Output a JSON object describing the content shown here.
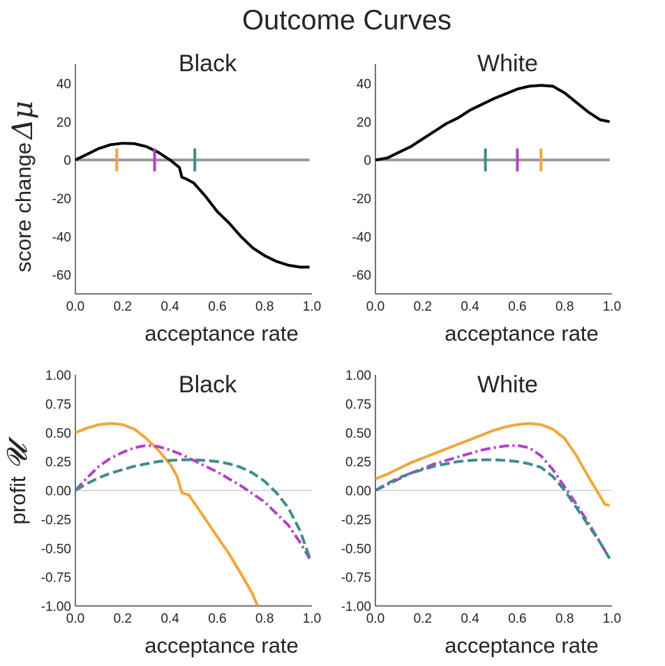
{
  "figure": {
    "title": "Outcome Curves",
    "top_ylabel": "score change",
    "top_ysymbol": "Δμ",
    "bottom_ylabel": "profit",
    "bottom_ysymbol": "𝓤",
    "colors": {
      "outcome": "#000000",
      "baseline": "#999999",
      "zero_line": "#c8c8c8",
      "orange": "#f1a73a",
      "purple": "#b541c8",
      "teal": "#3d8e8a",
      "axis": "#262626"
    }
  },
  "chart_data": [
    {
      "id": "black-score",
      "type": "line",
      "title": "Black",
      "xlabel": "acceptance rate",
      "ylabel": "score change Δμ",
      "xlim": [
        0,
        1
      ],
      "ylim": [
        -70,
        50
      ],
      "xticks": [
        0.0,
        0.2,
        0.4,
        0.6,
        0.8,
        1.0
      ],
      "xtick_labels": [
        "0.0",
        "0.2",
        "0.4",
        "0.6",
        "0.8",
        "1.0"
      ],
      "yticks": [
        40,
        20,
        0,
        -20,
        -40,
        -60
      ],
      "ytick_labels": [
        "40",
        "20",
        "0",
        "-20",
        "-40",
        "-60"
      ],
      "baseline": {
        "x": [
          0,
          0.99
        ],
        "y": [
          0,
          0
        ]
      },
      "series": [
        {
          "name": "score change",
          "color": "#000000",
          "style": "solid",
          "x": [
            0,
            0.05,
            0.1,
            0.15,
            0.2,
            0.25,
            0.3,
            0.35,
            0.4,
            0.44,
            0.45,
            0.47,
            0.5,
            0.55,
            0.6,
            0.65,
            0.7,
            0.75,
            0.8,
            0.85,
            0.9,
            0.95,
            0.99
          ],
          "y": [
            0,
            3,
            6,
            8,
            8.7,
            8.5,
            7,
            4,
            0,
            -4,
            -9,
            -10,
            -12,
            -19,
            -27,
            -33,
            -40,
            -46,
            -50,
            -53,
            -55,
            -56,
            -56
          ]
        }
      ],
      "markers": [
        {
          "name": "orange",
          "x": 0.175,
          "color": "#f1a73a"
        },
        {
          "name": "purple",
          "x": 0.335,
          "color": "#b541c8"
        },
        {
          "name": "teal",
          "x": 0.505,
          "color": "#3d8e8a"
        }
      ]
    },
    {
      "id": "white-score",
      "type": "line",
      "title": "White",
      "xlabel": "acceptance rate",
      "ylabel": "",
      "xlim": [
        0,
        1
      ],
      "ylim": [
        -70,
        50
      ],
      "xticks": [
        0.0,
        0.2,
        0.4,
        0.6,
        0.8,
        1.0
      ],
      "xtick_labels": [
        "0.0",
        "0.2",
        "0.4",
        "0.6",
        "0.8",
        "1.0"
      ],
      "yticks": [
        40,
        20,
        0,
        -20,
        -40,
        -60
      ],
      "ytick_labels": [
        "40",
        "20",
        "0",
        "-20",
        "-40",
        "-60"
      ],
      "baseline": {
        "x": [
          0,
          0.99
        ],
        "y": [
          0,
          0
        ]
      },
      "series": [
        {
          "name": "score change",
          "color": "#000000",
          "style": "solid",
          "x": [
            0,
            0.05,
            0.1,
            0.15,
            0.2,
            0.25,
            0.3,
            0.35,
            0.4,
            0.45,
            0.5,
            0.55,
            0.6,
            0.65,
            0.7,
            0.75,
            0.8,
            0.85,
            0.9,
            0.95,
            0.99
          ],
          "y": [
            0,
            1,
            4,
            7,
            11,
            15,
            19,
            22,
            26,
            29,
            32,
            34.5,
            37,
            38.5,
            39,
            38.5,
            35,
            30,
            25,
            21,
            20
          ]
        }
      ],
      "markers": [
        {
          "name": "teal",
          "x": 0.465,
          "color": "#3d8e8a"
        },
        {
          "name": "purple",
          "x": 0.6,
          "color": "#b541c8"
        },
        {
          "name": "orange",
          "x": 0.7,
          "color": "#f1a73a"
        }
      ]
    },
    {
      "id": "black-profit",
      "type": "line",
      "title": "Black",
      "xlabel": "acceptance rate",
      "ylabel": "profit 𝓤",
      "xlim": [
        0,
        1
      ],
      "ylim": [
        -1,
        1
      ],
      "xticks": [
        0.0,
        0.2,
        0.4,
        0.6,
        0.8,
        1.0
      ],
      "xtick_labels": [
        "0.0",
        "0.2",
        "0.4",
        "0.6",
        "0.8",
        "1.0"
      ],
      "yticks": [
        1,
        0.75,
        0.5,
        0.25,
        0,
        -0.25,
        -0.5,
        -0.75,
        -1
      ],
      "ytick_labels": [
        "1.00",
        "0.75",
        "0.50",
        "0.25",
        "0.00",
        "-0.25",
        "-0.50",
        "-0.75",
        "-1.00"
      ],
      "zero_line": true,
      "series": [
        {
          "name": "orange",
          "color": "#f1a73a",
          "style": "solid",
          "x": [
            0,
            0.05,
            0.1,
            0.15,
            0.2,
            0.25,
            0.3,
            0.35,
            0.4,
            0.43,
            0.45,
            0.48,
            0.5,
            0.55,
            0.6,
            0.65,
            0.7,
            0.75,
            0.77
          ],
          "y": [
            0.5,
            0.54,
            0.57,
            0.58,
            0.57,
            0.53,
            0.45,
            0.35,
            0.23,
            0.12,
            -0.02,
            -0.04,
            -0.1,
            -0.25,
            -0.4,
            -0.55,
            -0.72,
            -0.9,
            -1.0
          ]
        },
        {
          "name": "purple",
          "color": "#b541c8",
          "style": "dashdot",
          "x": [
            0,
            0.05,
            0.1,
            0.15,
            0.2,
            0.25,
            0.3,
            0.35,
            0.4,
            0.45,
            0.5,
            0.55,
            0.6,
            0.65,
            0.7,
            0.75,
            0.8,
            0.85,
            0.9,
            0.95,
            0.99
          ],
          "y": [
            0,
            0.11,
            0.21,
            0.28,
            0.33,
            0.37,
            0.39,
            0.38,
            0.35,
            0.31,
            0.26,
            0.21,
            0.16,
            0.1,
            0.04,
            -0.03,
            -0.1,
            -0.2,
            -0.3,
            -0.45,
            -0.59
          ]
        },
        {
          "name": "teal",
          "color": "#3d8e8a",
          "style": "dashed",
          "x": [
            0,
            0.05,
            0.1,
            0.15,
            0.2,
            0.25,
            0.3,
            0.35,
            0.4,
            0.45,
            0.5,
            0.55,
            0.6,
            0.65,
            0.7,
            0.75,
            0.8,
            0.85,
            0.9,
            0.95,
            0.99
          ],
          "y": [
            0,
            0.06,
            0.11,
            0.15,
            0.18,
            0.21,
            0.23,
            0.25,
            0.26,
            0.265,
            0.265,
            0.26,
            0.25,
            0.23,
            0.2,
            0.15,
            0.08,
            -0.02,
            -0.15,
            -0.35,
            -0.58
          ]
        }
      ]
    },
    {
      "id": "white-profit",
      "type": "line",
      "title": "White",
      "xlabel": "acceptance rate",
      "ylabel": "",
      "xlim": [
        0,
        1
      ],
      "ylim": [
        -1,
        1
      ],
      "xticks": [
        0.0,
        0.2,
        0.4,
        0.6,
        0.8,
        1.0
      ],
      "xtick_labels": [
        "0.0",
        "0.2",
        "0.4",
        "0.6",
        "0.8",
        "1.0"
      ],
      "yticks": [
        1,
        0.75,
        0.5,
        0.25,
        0,
        -0.25,
        -0.5,
        -0.75,
        -1
      ],
      "ytick_labels": [
        "1.00",
        "0.75",
        "0.50",
        "0.25",
        "0.00",
        "-0.25",
        "-0.50",
        "-0.75",
        "-1.00"
      ],
      "zero_line": true,
      "series": [
        {
          "name": "orange",
          "color": "#f1a73a",
          "style": "solid",
          "x": [
            0,
            0.05,
            0.1,
            0.15,
            0.2,
            0.25,
            0.3,
            0.35,
            0.4,
            0.45,
            0.5,
            0.55,
            0.6,
            0.65,
            0.7,
            0.75,
            0.8,
            0.85,
            0.9,
            0.95,
            0.97,
            0.99
          ],
          "y": [
            0.1,
            0.14,
            0.19,
            0.24,
            0.28,
            0.32,
            0.36,
            0.4,
            0.44,
            0.48,
            0.52,
            0.55,
            0.57,
            0.58,
            0.57,
            0.53,
            0.45,
            0.3,
            0.12,
            -0.05,
            -0.12,
            -0.13
          ]
        },
        {
          "name": "purple",
          "color": "#b541c8",
          "style": "dashdot",
          "x": [
            0,
            0.05,
            0.1,
            0.15,
            0.2,
            0.25,
            0.3,
            0.35,
            0.4,
            0.45,
            0.5,
            0.55,
            0.6,
            0.65,
            0.7,
            0.75,
            0.8,
            0.85,
            0.9,
            0.95,
            0.99
          ],
          "y": [
            0,
            0.05,
            0.1,
            0.15,
            0.19,
            0.23,
            0.26,
            0.29,
            0.32,
            0.35,
            0.37,
            0.385,
            0.39,
            0.37,
            0.3,
            0.18,
            0.03,
            -0.12,
            -0.28,
            -0.45,
            -0.59
          ]
        },
        {
          "name": "teal",
          "color": "#3d8e8a",
          "style": "dashed",
          "x": [
            0,
            0.05,
            0.1,
            0.15,
            0.2,
            0.25,
            0.3,
            0.35,
            0.4,
            0.45,
            0.5,
            0.55,
            0.6,
            0.65,
            0.7,
            0.75,
            0.8,
            0.85,
            0.9,
            0.95,
            0.99
          ],
          "y": [
            0,
            0.06,
            0.11,
            0.15,
            0.18,
            0.21,
            0.23,
            0.25,
            0.26,
            0.265,
            0.265,
            0.26,
            0.25,
            0.23,
            0.2,
            0.12,
            0.0,
            -0.15,
            -0.3,
            -0.45,
            -0.59
          ]
        }
      ]
    }
  ]
}
